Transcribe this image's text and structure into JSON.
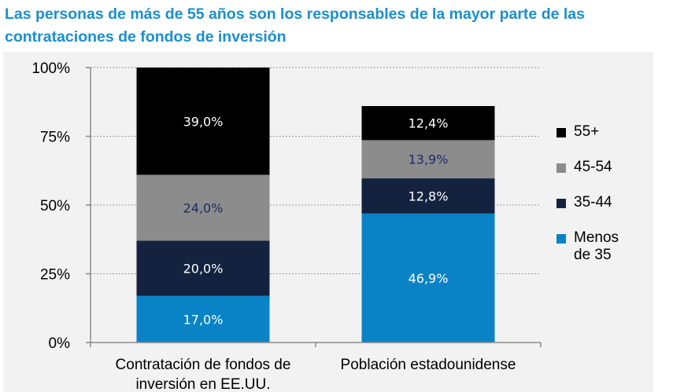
{
  "title": "Las personas de más de 55 años son los responsables de la mayor parte de las contrataciones de fondos de inversión",
  "chart_data": {
    "type": "bar",
    "stacked": true,
    "title": "Las personas de más de 55 años son los responsables de la mayor parte de las contrataciones de fondos de inversión",
    "categories": [
      "Contratación de fondos de inversión en EE.UU.",
      "Población estadounidense"
    ],
    "series": [
      {
        "name": "Menos de 35",
        "color": "#0a83c6",
        "label_color": "#ffffff",
        "values": [
          17.0,
          46.9
        ],
        "labels": [
          "17,0%",
          "46,9%"
        ]
      },
      {
        "name": "35-44",
        "color": "#13233f",
        "label_color": "#ffffff",
        "values": [
          20.0,
          12.8
        ],
        "labels": [
          "20,0%",
          "12,8%"
        ]
      },
      {
        "name": "45-54",
        "color": "#8c8c8c",
        "label_color": "#1d2b63",
        "values": [
          24.0,
          13.9
        ],
        "labels": [
          "24,0%",
          "13,9%"
        ]
      },
      {
        "name": "55+",
        "color": "#000000",
        "label_color": "#ffffff",
        "values": [
          39.0,
          12.4
        ],
        "labels": [
          "39,0%",
          "12,4%"
        ]
      }
    ],
    "ylim": [
      0,
      100
    ],
    "yticks": [
      0,
      25,
      50,
      75,
      100
    ],
    "ytick_labels": [
      "0%",
      "25%",
      "50%",
      "75%",
      "100%"
    ],
    "xlabel": "",
    "ylabel": "",
    "grid": true,
    "legend_position": "right"
  }
}
